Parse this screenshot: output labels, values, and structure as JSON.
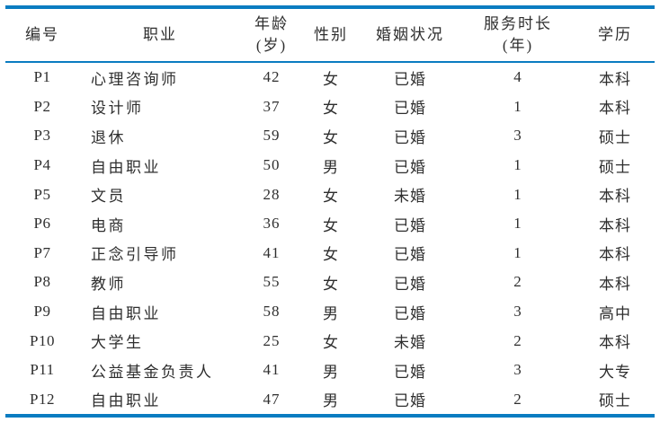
{
  "colors": {
    "rule_blue": "#0a7cc1",
    "text": "#2e2e2e",
    "background": "#ffffff"
  },
  "table": {
    "columns": [
      {
        "key": "id",
        "label": "编号",
        "sub": ""
      },
      {
        "key": "occupation",
        "label": "职业",
        "sub": ""
      },
      {
        "key": "age",
        "label": "年龄",
        "sub": "(岁)"
      },
      {
        "key": "gender",
        "label": "性别",
        "sub": ""
      },
      {
        "key": "marital",
        "label": "婚姻状况",
        "sub": ""
      },
      {
        "key": "service",
        "label": "服务时长",
        "sub": "(年)"
      },
      {
        "key": "education",
        "label": "学历",
        "sub": ""
      }
    ],
    "rows": [
      {
        "id": "P1",
        "occupation": "心理咨询师",
        "age": "42",
        "gender": "女",
        "marital": "已婚",
        "service": "4",
        "education": "本科"
      },
      {
        "id": "P2",
        "occupation": "设计师",
        "age": "37",
        "gender": "女",
        "marital": "已婚",
        "service": "1",
        "education": "本科"
      },
      {
        "id": "P3",
        "occupation": "退休",
        "age": "59",
        "gender": "女",
        "marital": "已婚",
        "service": "3",
        "education": "硕士"
      },
      {
        "id": "P4",
        "occupation": "自由职业",
        "age": "50",
        "gender": "男",
        "marital": "已婚",
        "service": "1",
        "education": "硕士"
      },
      {
        "id": "P5",
        "occupation": "文员",
        "age": "28",
        "gender": "女",
        "marital": "未婚",
        "service": "1",
        "education": "本科"
      },
      {
        "id": "P6",
        "occupation": "电商",
        "age": "36",
        "gender": "女",
        "marital": "已婚",
        "service": "1",
        "education": "本科"
      },
      {
        "id": "P7",
        "occupation": "正念引导师",
        "age": "41",
        "gender": "女",
        "marital": "已婚",
        "service": "1",
        "education": "本科"
      },
      {
        "id": "P8",
        "occupation": "教师",
        "age": "55",
        "gender": "女",
        "marital": "已婚",
        "service": "2",
        "education": "本科"
      },
      {
        "id": "P9",
        "occupation": "自由职业",
        "age": "58",
        "gender": "男",
        "marital": "已婚",
        "service": "3",
        "education": "高中"
      },
      {
        "id": "P10",
        "occupation": "大学生",
        "age": "25",
        "gender": "女",
        "marital": "未婚",
        "service": "2",
        "education": "本科"
      },
      {
        "id": "P11",
        "occupation": "公益基金负责人",
        "age": "41",
        "gender": "男",
        "marital": "已婚",
        "service": "3",
        "education": "大专"
      },
      {
        "id": "P12",
        "occupation": "自由职业",
        "age": "47",
        "gender": "男",
        "marital": "已婚",
        "service": "2",
        "education": "硕士"
      }
    ]
  }
}
